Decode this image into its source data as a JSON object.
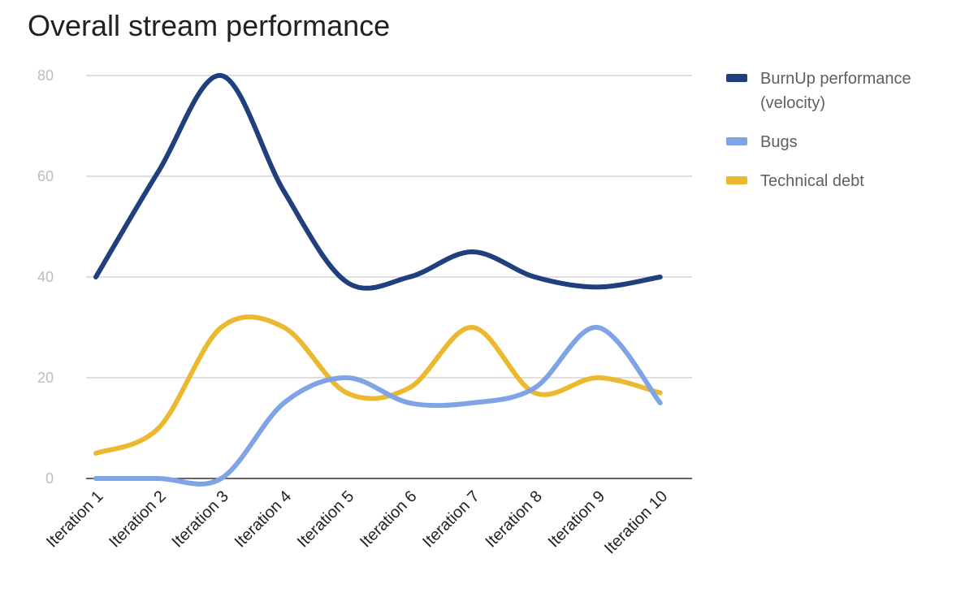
{
  "chart_data": {
    "type": "line",
    "title": "Overall stream performance",
    "xlabel": "",
    "ylabel": "",
    "categories": [
      "Iteration 1",
      "Iteration 2",
      "Iteration 3",
      "Iteration 4",
      "Iteration 5",
      "Iteration 6",
      "Iteration 7",
      "Iteration 8",
      "Iteration 9",
      "Iteration 10"
    ],
    "ylim": [
      0,
      80
    ],
    "yticks": [
      0,
      20,
      40,
      60,
      80
    ],
    "grid": true,
    "smooth": true,
    "legend_position": "right",
    "series": [
      {
        "name": "BurnUp performance (velocity)",
        "legend_lines": [
          "BurnUp performance",
          "(velocity)"
        ],
        "color": "#1f3f7d",
        "values": [
          40,
          61,
          80,
          57,
          39,
          40,
          45,
          40,
          38,
          40
        ]
      },
      {
        "name": "Bugs",
        "legend_lines": [
          "Bugs"
        ],
        "color": "#7ea4e6",
        "values": [
          0,
          0,
          0,
          15,
          20,
          15,
          15,
          18,
          30,
          15
        ]
      },
      {
        "name": "Technical debt",
        "legend_lines": [
          "Technical debt"
        ],
        "color": "#ebb92f",
        "values": [
          5,
          10,
          30,
          30,
          17,
          18,
          30,
          17,
          20,
          17
        ]
      }
    ]
  }
}
